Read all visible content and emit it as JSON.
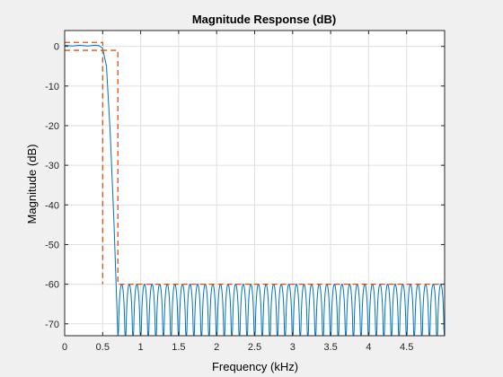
{
  "chart_data": {
    "type": "line",
    "title": "Magnitude Response (dB)",
    "xlabel": "Frequency (kHz)",
    "ylabel": "Magnitude (dB)",
    "xlim": [
      0,
      5
    ],
    "ylim": [
      -73,
      4
    ],
    "x_ticks": [
      0,
      0.5,
      1,
      1.5,
      2,
      2.5,
      3,
      3.5,
      4,
      4.5
    ],
    "x_tick_labels": [
      "0",
      "0.5",
      "1",
      "1.5",
      "2",
      "2.5",
      "3",
      "3.5",
      "4",
      "4.5"
    ],
    "y_ticks": [
      0,
      -10,
      -20,
      -30,
      -40,
      -50,
      -60,
      -70
    ],
    "y_tick_labels": [
      "0",
      "-10",
      "-20",
      "-30",
      "-40",
      "-50",
      "-60",
      "-70"
    ],
    "grid": true,
    "legend": "none",
    "series": [
      {
        "kind": "response",
        "color": "#0072bd",
        "passband_edge_khz": 0.5,
        "stopband_start_khz": 0.7,
        "passband_level_db": 0,
        "stopband_peak_db": -60,
        "stopband_floor_db": -73,
        "stopband_ripple_period_khz": 0.1,
        "points": [
          [
            0,
            0.3
          ],
          [
            0.1,
            0.1
          ],
          [
            0.2,
            0.3
          ],
          [
            0.3,
            0.1
          ],
          [
            0.4,
            0.3
          ],
          [
            0.45,
            0.2
          ],
          [
            0.5,
            -0.5
          ],
          [
            0.55,
            -5
          ],
          [
            0.6,
            -22
          ],
          [
            0.65,
            -45
          ],
          [
            0.7,
            -73
          ]
        ]
      },
      {
        "kind": "spec-mask-upper",
        "color": "#d95319",
        "dashed": true,
        "points": [
          [
            0,
            1
          ],
          [
            0.5,
            1
          ],
          [
            0.5,
            -1
          ],
          [
            0.7,
            -1
          ],
          [
            0.7,
            -60
          ],
          [
            5,
            -60
          ]
        ]
      },
      {
        "kind": "spec-mask-lower",
        "color": "#d95319",
        "dashed": true,
        "points": [
          [
            0,
            -1
          ],
          [
            0.5,
            -1
          ],
          [
            0.5,
            -60
          ]
        ]
      }
    ]
  }
}
